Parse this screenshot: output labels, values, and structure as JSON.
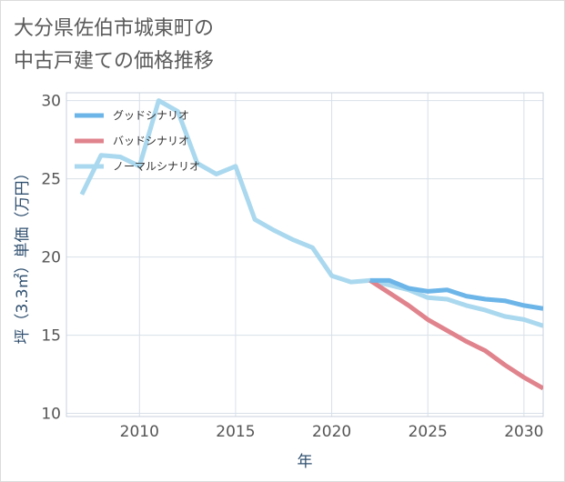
{
  "page": {
    "title_line1": "大分県佐伯市城東町の",
    "title_line2": "中古戸建ての価格推移"
  },
  "chart_data": {
    "type": "line",
    "title": "大分県佐伯市城東町の中古戸建ての価格推移",
    "xlabel": "年",
    "ylabel": "坪（3.3㎡）単価（万円）",
    "xlim": [
      2006.2,
      2031
    ],
    "ylim": [
      9.8,
      30.5
    ],
    "xticks": [
      2010,
      2015,
      2020,
      2025,
      2030
    ],
    "yticks": [
      10,
      15,
      20,
      25,
      30
    ],
    "grid": true,
    "legend_position": "top-left",
    "series": [
      {
        "name": "グッドシナリオ",
        "color": "#6cb5e8",
        "x": [
          2022,
          2023,
          2024,
          2025,
          2026,
          2027,
          2028,
          2029,
          2030,
          2031
        ],
        "values": [
          18.5,
          18.5,
          18.0,
          17.8,
          17.9,
          17.5,
          17.3,
          17.2,
          16.9,
          16.7
        ]
      },
      {
        "name": "バッドシナリオ",
        "color": "#e0838c",
        "x": [
          2022,
          2023,
          2024,
          2025,
          2026,
          2027,
          2028,
          2029,
          2030,
          2031
        ],
        "values": [
          18.5,
          17.7,
          16.9,
          16.0,
          15.3,
          14.6,
          14.0,
          13.1,
          12.3,
          11.6
        ]
      },
      {
        "name": "ノーマルシナリオ",
        "color": "#aad8ee",
        "x": [
          2007,
          2008,
          2009,
          2010,
          2011,
          2012,
          2013,
          2014,
          2015,
          2016,
          2017,
          2018,
          2019,
          2020,
          2021,
          2022,
          2023,
          2024,
          2025,
          2026,
          2027,
          2028,
          2029,
          2030,
          2031
        ],
        "values": [
          24.0,
          26.5,
          26.4,
          25.8,
          30.0,
          29.3,
          26.0,
          25.3,
          25.8,
          22.4,
          21.7,
          21.1,
          20.6,
          18.8,
          18.4,
          18.5,
          18.2,
          17.9,
          17.4,
          17.3,
          16.9,
          16.6,
          16.2,
          16.0,
          15.6
        ]
      }
    ]
  }
}
